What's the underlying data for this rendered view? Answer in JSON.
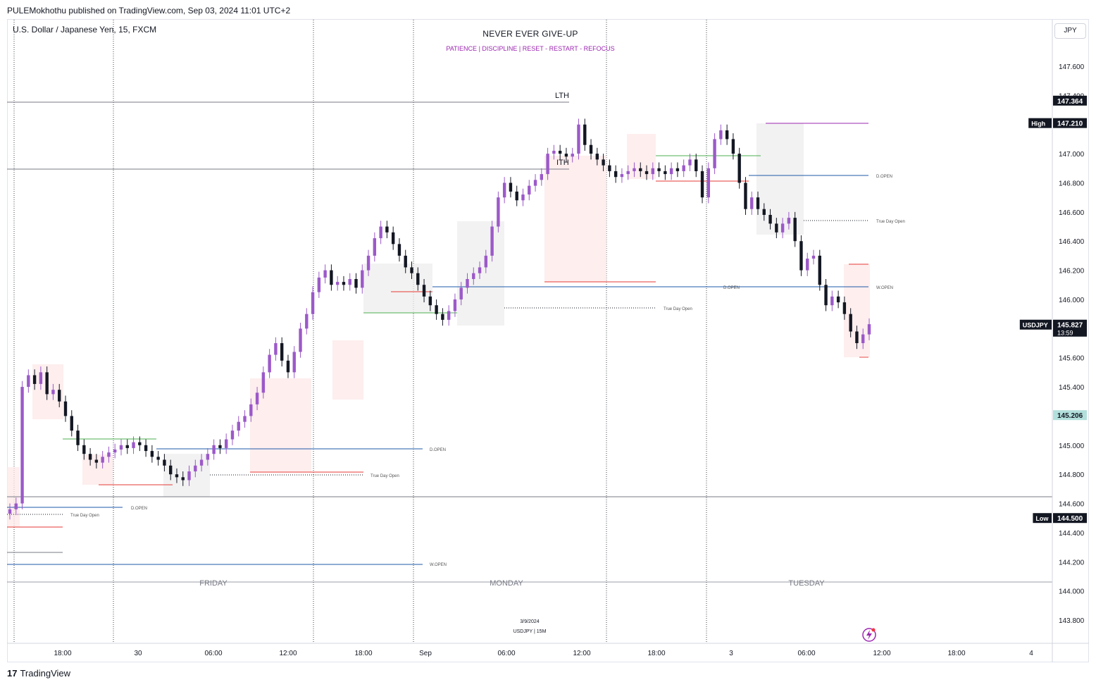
{
  "header": {
    "published": "PULEMokhothu published on TradingView.com, Sep 03, 2024 11:01 UTC+2",
    "symbol": "U.S. Dollar / Japanese Yen, 15, FXCM",
    "currency": "JPY"
  },
  "banner": {
    "title": "NEVER EVER GIVE-UP",
    "subtitle": "PATIENCE   |   DISCIPLINE   |   RESET - RESTART - REFOCUS"
  },
  "footer": {
    "brand": "TradingView",
    "date_note": "3/9/2024",
    "sym_note": "USDJPY  |  15M"
  },
  "colors": {
    "bull": "#9c59c9",
    "bear": "#131722",
    "blue_line": "#1e5aa8",
    "red_line": "#e53935",
    "green_line": "#4caf50",
    "pink_box": "#fde8e8",
    "grey_box": "#eeeeee",
    "price_tag": "#131722",
    "teal_tag": "#b2dfdb"
  },
  "chart_data": {
    "type": "candlestick",
    "title": "U.S. Dollar / Japanese Yen, 15, FXCM",
    "ylim": [
      143.6,
      148.0
    ],
    "y_ticks": [
      "147.600",
      "147.400",
      "147.200",
      "147.000",
      "146.800",
      "146.600",
      "146.400",
      "146.200",
      "146.000",
      "145.800",
      "145.600",
      "145.400",
      "145.200",
      "145.000",
      "144.800",
      "144.600",
      "144.400",
      "144.200",
      "144.000",
      "143.800"
    ],
    "x_ticks": [
      {
        "label": "18:00"
      },
      {
        "label": "30"
      },
      {
        "label": "06:00"
      },
      {
        "label": "12:00"
      },
      {
        "label": "18:00"
      },
      {
        "label": "Sep"
      },
      {
        "label": "06:00"
      },
      {
        "label": "12:00"
      },
      {
        "label": "18:00"
      },
      {
        "label": "3"
      },
      {
        "label": "06:00"
      },
      {
        "label": "12:00"
      },
      {
        "label": "18:00"
      },
      {
        "label": "4"
      }
    ],
    "day_labels": [
      "FRIDAY",
      "MONDAY",
      "TUESDAY"
    ],
    "price_tags": [
      {
        "label": "",
        "value": "147.364",
        "price": 147.364,
        "style": "dark"
      },
      {
        "label": "High",
        "value": "147.210",
        "price": 147.21,
        "style": "dark"
      },
      {
        "label": "USDJPY",
        "value": "145.827",
        "sub": "13:59",
        "price": 145.827,
        "style": "dark"
      },
      {
        "label": "",
        "value": "145.206",
        "price": 145.206,
        "style": "teal"
      },
      {
        "label": "Low",
        "value": "144.500",
        "price": 144.5,
        "style": "dark"
      }
    ],
    "levels": [
      {
        "text": "LTH",
        "price": 147.36
      },
      {
        "text": "ITH",
        "price": 146.9
      },
      {
        "text": "D.OPEN",
        "price": 144.57
      },
      {
        "text": "True Day Open",
        "price": 144.52
      },
      {
        "text": "W.OPEN",
        "price": 144.18
      },
      {
        "text": "D.OPEN",
        "price": 144.97
      },
      {
        "text": "True Day Open",
        "price": 144.79
      },
      {
        "text": "True Day Open",
        "price": 145.95
      },
      {
        "text": "D.OPEN",
        "price": 146.09
      },
      {
        "text": "W.OPEN",
        "price": 146.09
      },
      {
        "text": "D.OPEN",
        "price": 146.85
      },
      {
        "text": "True Day Open",
        "price": 146.54
      }
    ],
    "series": [
      {
        "name": "USDJPY",
        "close": [
          144.56,
          144.6,
          145.4,
          145.48,
          145.42,
          145.5,
          145.35,
          145.38,
          145.3,
          145.2,
          145.1,
          145.0,
          144.94,
          144.9,
          144.88,
          144.92,
          144.95,
          144.97,
          145.0,
          144.98,
          145.02,
          145.0,
          144.96,
          144.92,
          144.9,
          144.86,
          144.8,
          144.78,
          144.76,
          144.82,
          144.86,
          144.9,
          144.94,
          145.0,
          144.98,
          145.04,
          145.1,
          145.16,
          145.2,
          145.28,
          145.36,
          145.5,
          145.62,
          145.7,
          145.58,
          145.5,
          145.64,
          145.8,
          145.9,
          146.05,
          146.15,
          146.2,
          146.1,
          146.12,
          146.1,
          146.14,
          146.08,
          146.2,
          146.3,
          146.42,
          146.5,
          146.46,
          146.38,
          146.3,
          146.22,
          146.18,
          146.1,
          146.02,
          145.96,
          145.9,
          145.86,
          145.92,
          146.0,
          146.08,
          146.14,
          146.18,
          146.22,
          146.3,
          146.5,
          146.7,
          146.8,
          146.74,
          146.68,
          146.72,
          146.78,
          146.82,
          146.86,
          147.0,
          147.02,
          147.0,
          146.98,
          147.0,
          147.2,
          147.06,
          147.0,
          146.96,
          146.92,
          146.88,
          146.84,
          146.86,
          146.88,
          146.9,
          146.88,
          146.86,
          146.9,
          146.88,
          146.86,
          146.9,
          146.88,
          146.92,
          146.96,
          146.88,
          146.7,
          146.9,
          147.1,
          147.16,
          147.1,
          147.0,
          146.8,
          146.62,
          146.7,
          146.62,
          146.58,
          146.52,
          146.46,
          146.52,
          146.56,
          146.4,
          146.2,
          146.28,
          146.3,
          146.1,
          145.96,
          146.02,
          145.98,
          145.9,
          145.78,
          145.7,
          145.76,
          145.83
        ]
      }
    ]
  }
}
